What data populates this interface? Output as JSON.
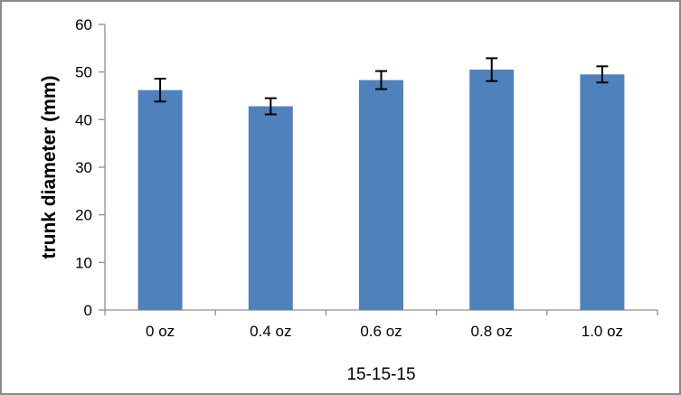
{
  "chart_data": {
    "type": "bar",
    "title": "",
    "categories": [
      "0 oz",
      "0.4 oz",
      "0.6 oz",
      "0.8 oz",
      "1.0 oz"
    ],
    "values": [
      46.2,
      42.8,
      48.3,
      50.5,
      49.5
    ],
    "error_bars": [
      2.4,
      1.7,
      1.9,
      2.4,
      1.7
    ],
    "xlabel": "15-15-15",
    "ylabel": "trunk diameter (mm)",
    "ylim": [
      0,
      60
    ],
    "ytick_step": 10,
    "ytick_labels": [
      "0",
      "10",
      "20",
      "30",
      "40",
      "50",
      "60"
    ],
    "grid": false,
    "legend": false,
    "bar_color": "#4f81bd",
    "error_bar_color": "#000000",
    "axis_color": "#909090",
    "frame_border_color": "#8a8a8a",
    "label_color": "#000000"
  }
}
